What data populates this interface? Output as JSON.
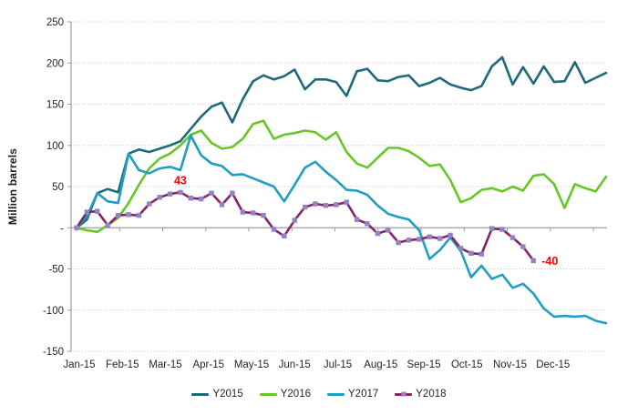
{
  "chart_data": {
    "type": "line",
    "title": "",
    "ylabel": "Million barrels",
    "ylim": [
      -150,
      250
    ],
    "grid": true,
    "legend_position": "bottom",
    "x_axis": {
      "unit": "weekly points across 2015 calendar (cumulative change vs start of year)",
      "month_labels": [
        "Jan-15",
        "Feb-15",
        "Mar-15",
        "Apr-15",
        "May-15",
        "Jun-15",
        "Jul-15",
        "Aug-15",
        "Sep-15",
        "Oct-15",
        "Nov-15",
        "Dec-15"
      ]
    },
    "y_axis": {
      "tick_values": [
        250,
        200,
        150,
        100,
        50,
        0,
        -50,
        -100,
        -150
      ],
      "tick_labels": [
        "250",
        "200",
        "150",
        "100",
        "50",
        "-",
        "-50",
        "-100",
        "-150"
      ]
    },
    "series": [
      {
        "name": "Y2015",
        "color": "#1e6a7a",
        "marker": "none",
        "values": [
          0,
          10,
          42,
          47,
          43,
          90,
          95,
          92,
          96,
          100,
          105,
          120,
          135,
          147,
          152,
          128,
          156,
          178,
          185,
          180,
          184,
          192,
          168,
          180,
          180,
          177,
          160,
          190,
          193,
          179,
          178,
          183,
          185,
          172,
          176,
          182,
          174,
          170,
          167,
          172,
          196,
          207,
          174,
          195,
          175,
          196,
          177,
          178,
          201,
          176,
          182,
          188
        ]
      },
      {
        "name": "Y2016",
        "color": "#66c726",
        "marker": "none",
        "values": [
          0,
          -3,
          -5,
          3,
          12,
          30,
          52,
          72,
          84,
          90,
          100,
          113,
          118,
          103,
          96,
          98,
          108,
          126,
          130,
          108,
          113,
          115,
          118,
          116,
          107,
          116,
          92,
          78,
          73,
          85,
          97,
          97,
          93,
          85,
          75,
          77,
          58,
          31,
          36,
          46,
          48,
          44,
          50,
          45,
          63,
          65,
          53,
          24,
          53,
          48,
          44,
          62
        ]
      },
      {
        "name": "Y2017",
        "color": "#209fc2",
        "marker": "none",
        "values": [
          0,
          14,
          42,
          32,
          30,
          90,
          70,
          66,
          72,
          74,
          70,
          112,
          88,
          78,
          75,
          64,
          65,
          60,
          55,
          50,
          32,
          52,
          73,
          80,
          68,
          58,
          46,
          45,
          40,
          27,
          17,
          13,
          10,
          -3,
          -38,
          -27,
          -12,
          -28,
          -60,
          -46,
          -62,
          -57,
          -73,
          -68,
          -80,
          -98,
          -108,
          -107,
          -108,
          -107,
          -113,
          -116
        ]
      },
      {
        "name": "Y2018",
        "color": "#8b2263",
        "marker": "square",
        "marker_color": "#8d85c6",
        "values": [
          0,
          19,
          20,
          3,
          15,
          16,
          15,
          29,
          37,
          41,
          43,
          36,
          35,
          42,
          28,
          42,
          19,
          18,
          15,
          -2,
          -10,
          9,
          25,
          29,
          27,
          28,
          31,
          10,
          5,
          -7,
          -3,
          -18,
          -15,
          -14,
          -11,
          -13,
          -9,
          -25,
          -31,
          -32,
          -1,
          -2,
          -12,
          -23,
          -40
        ]
      }
    ],
    "annotations": [
      {
        "text": "43",
        "color": "#ff0000",
        "series": "Y2018",
        "point_index": 10,
        "placement": "above"
      },
      {
        "text": "-40",
        "color": "#ff0000",
        "series": "Y2018",
        "point_index": 44,
        "placement": "right"
      }
    ],
    "style": {
      "gridline_color": "#c8c8c8",
      "axis_color": "#9e9e9e",
      "annotation_color": "#ff0000",
      "background": "#ffffff"
    }
  }
}
